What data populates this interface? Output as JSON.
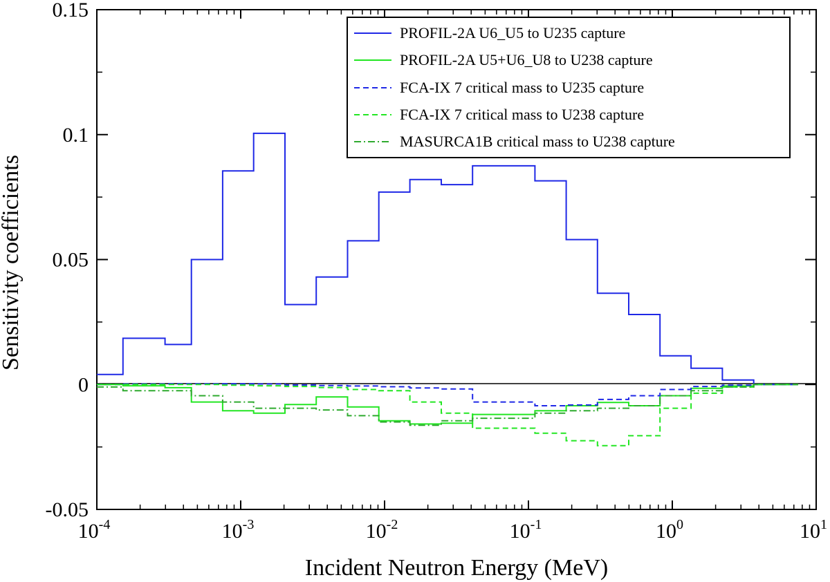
{
  "chart_data": {
    "type": "line",
    "title": "",
    "xlabel": "Incident Neutron Energy (MeV)",
    "ylabel": "Sensitivity coefficients",
    "xscale": "log",
    "xlim": [
      0.0001,
      10
    ],
    "ylim": [
      -0.05,
      0.15
    ],
    "grid": false,
    "legend_position": "top-right",
    "x_ticks": [
      {
        "value": 0.0001,
        "base": "10",
        "exp": "-4"
      },
      {
        "value": 0.001,
        "base": "10",
        "exp": "-3"
      },
      {
        "value": 0.01,
        "base": "10",
        "exp": "-2"
      },
      {
        "value": 0.1,
        "base": "10",
        "exp": "-1"
      },
      {
        "value": 1,
        "base": "10",
        "exp": "0"
      },
      {
        "value": 10,
        "base": "10",
        "exp": "1"
      }
    ],
    "y_ticks": [
      {
        "value": -0.05,
        "label": "-0.05"
      },
      {
        "value": 0,
        "label": "0"
      },
      {
        "value": 0.05,
        "label": "0.05"
      },
      {
        "value": 0.1,
        "label": "0.1"
      },
      {
        "value": 0.15,
        "label": "0.15"
      }
    ],
    "energy_bins": [
      0.0001,
      0.000152,
      0.000298,
      0.000454,
      0.000749,
      0.00123,
      0.00203,
      0.00335,
      0.00553,
      0.00912,
      0.015,
      0.0248,
      0.0409,
      0.111,
      0.183,
      0.302,
      0.498,
      0.821,
      1.35,
      2.23,
      3.68,
      6.07,
      7.5
    ],
    "series": [
      {
        "name": "PROFIL-2A U6_U5 to U235 capture",
        "color": "#1f28e6",
        "dash": "solid",
        "values": [
          0.004,
          0.0185,
          0.016,
          0.05,
          0.0855,
          0.1005,
          0.032,
          0.043,
          0.0575,
          0.077,
          0.082,
          0.08,
          0.0875,
          0.0815,
          0.058,
          0.0365,
          0.028,
          0.0115,
          0.0065,
          0.0018,
          0.0,
          0.0
        ]
      },
      {
        "name": "PROFIL-2A U5+U6_U8 to U238 capture",
        "color": "#22e622",
        "dash": "solid",
        "values": [
          0.0,
          -0.0005,
          -0.0013,
          -0.007,
          -0.0105,
          -0.0115,
          -0.008,
          -0.005,
          -0.009,
          -0.0145,
          -0.0158,
          -0.0155,
          -0.012,
          -0.0105,
          -0.0085,
          -0.0072,
          -0.0085,
          -0.0045,
          -0.0015,
          -0.0006,
          0.0,
          0.0
        ]
      },
      {
        "name": "FCA-IX 7 critical mass to U235 capture",
        "color": "#1f28e6",
        "dash": "dashed",
        "values": [
          0.0,
          0.0002,
          0.0003,
          0.0003,
          0.0003,
          0.0002,
          -0.0002,
          -0.0004,
          -0.0006,
          -0.0009,
          -0.0014,
          -0.0018,
          -0.007,
          -0.0085,
          -0.0082,
          -0.006,
          -0.0045,
          -0.002,
          -0.0008,
          -0.0003,
          0.0,
          0.0
        ]
      },
      {
        "name": "FCA-IX 7 critical mass to U238 capture",
        "color": "#22e622",
        "dash": "dashed",
        "values": [
          0.0,
          0.0,
          0.0,
          0.0,
          -0.0003,
          -0.0005,
          -0.0008,
          -0.0012,
          -0.002,
          -0.0025,
          -0.007,
          -0.0115,
          -0.0175,
          -0.0195,
          -0.0225,
          -0.0245,
          -0.0205,
          -0.0095,
          -0.0035,
          -0.001,
          0.0,
          0.0
        ]
      },
      {
        "name": "MASURCA1B critical mass to U238 capture",
        "color": "#2eaa2e",
        "dash": "dashdot",
        "values": [
          -0.001,
          -0.0025,
          -0.0025,
          -0.0045,
          -0.007,
          -0.0095,
          -0.0095,
          -0.0102,
          -0.0125,
          -0.015,
          -0.0163,
          -0.0145,
          -0.0135,
          -0.0115,
          -0.0105,
          -0.0095,
          -0.0085,
          -0.0045,
          -0.0025,
          -0.001,
          0.0,
          0.0
        ]
      }
    ]
  }
}
